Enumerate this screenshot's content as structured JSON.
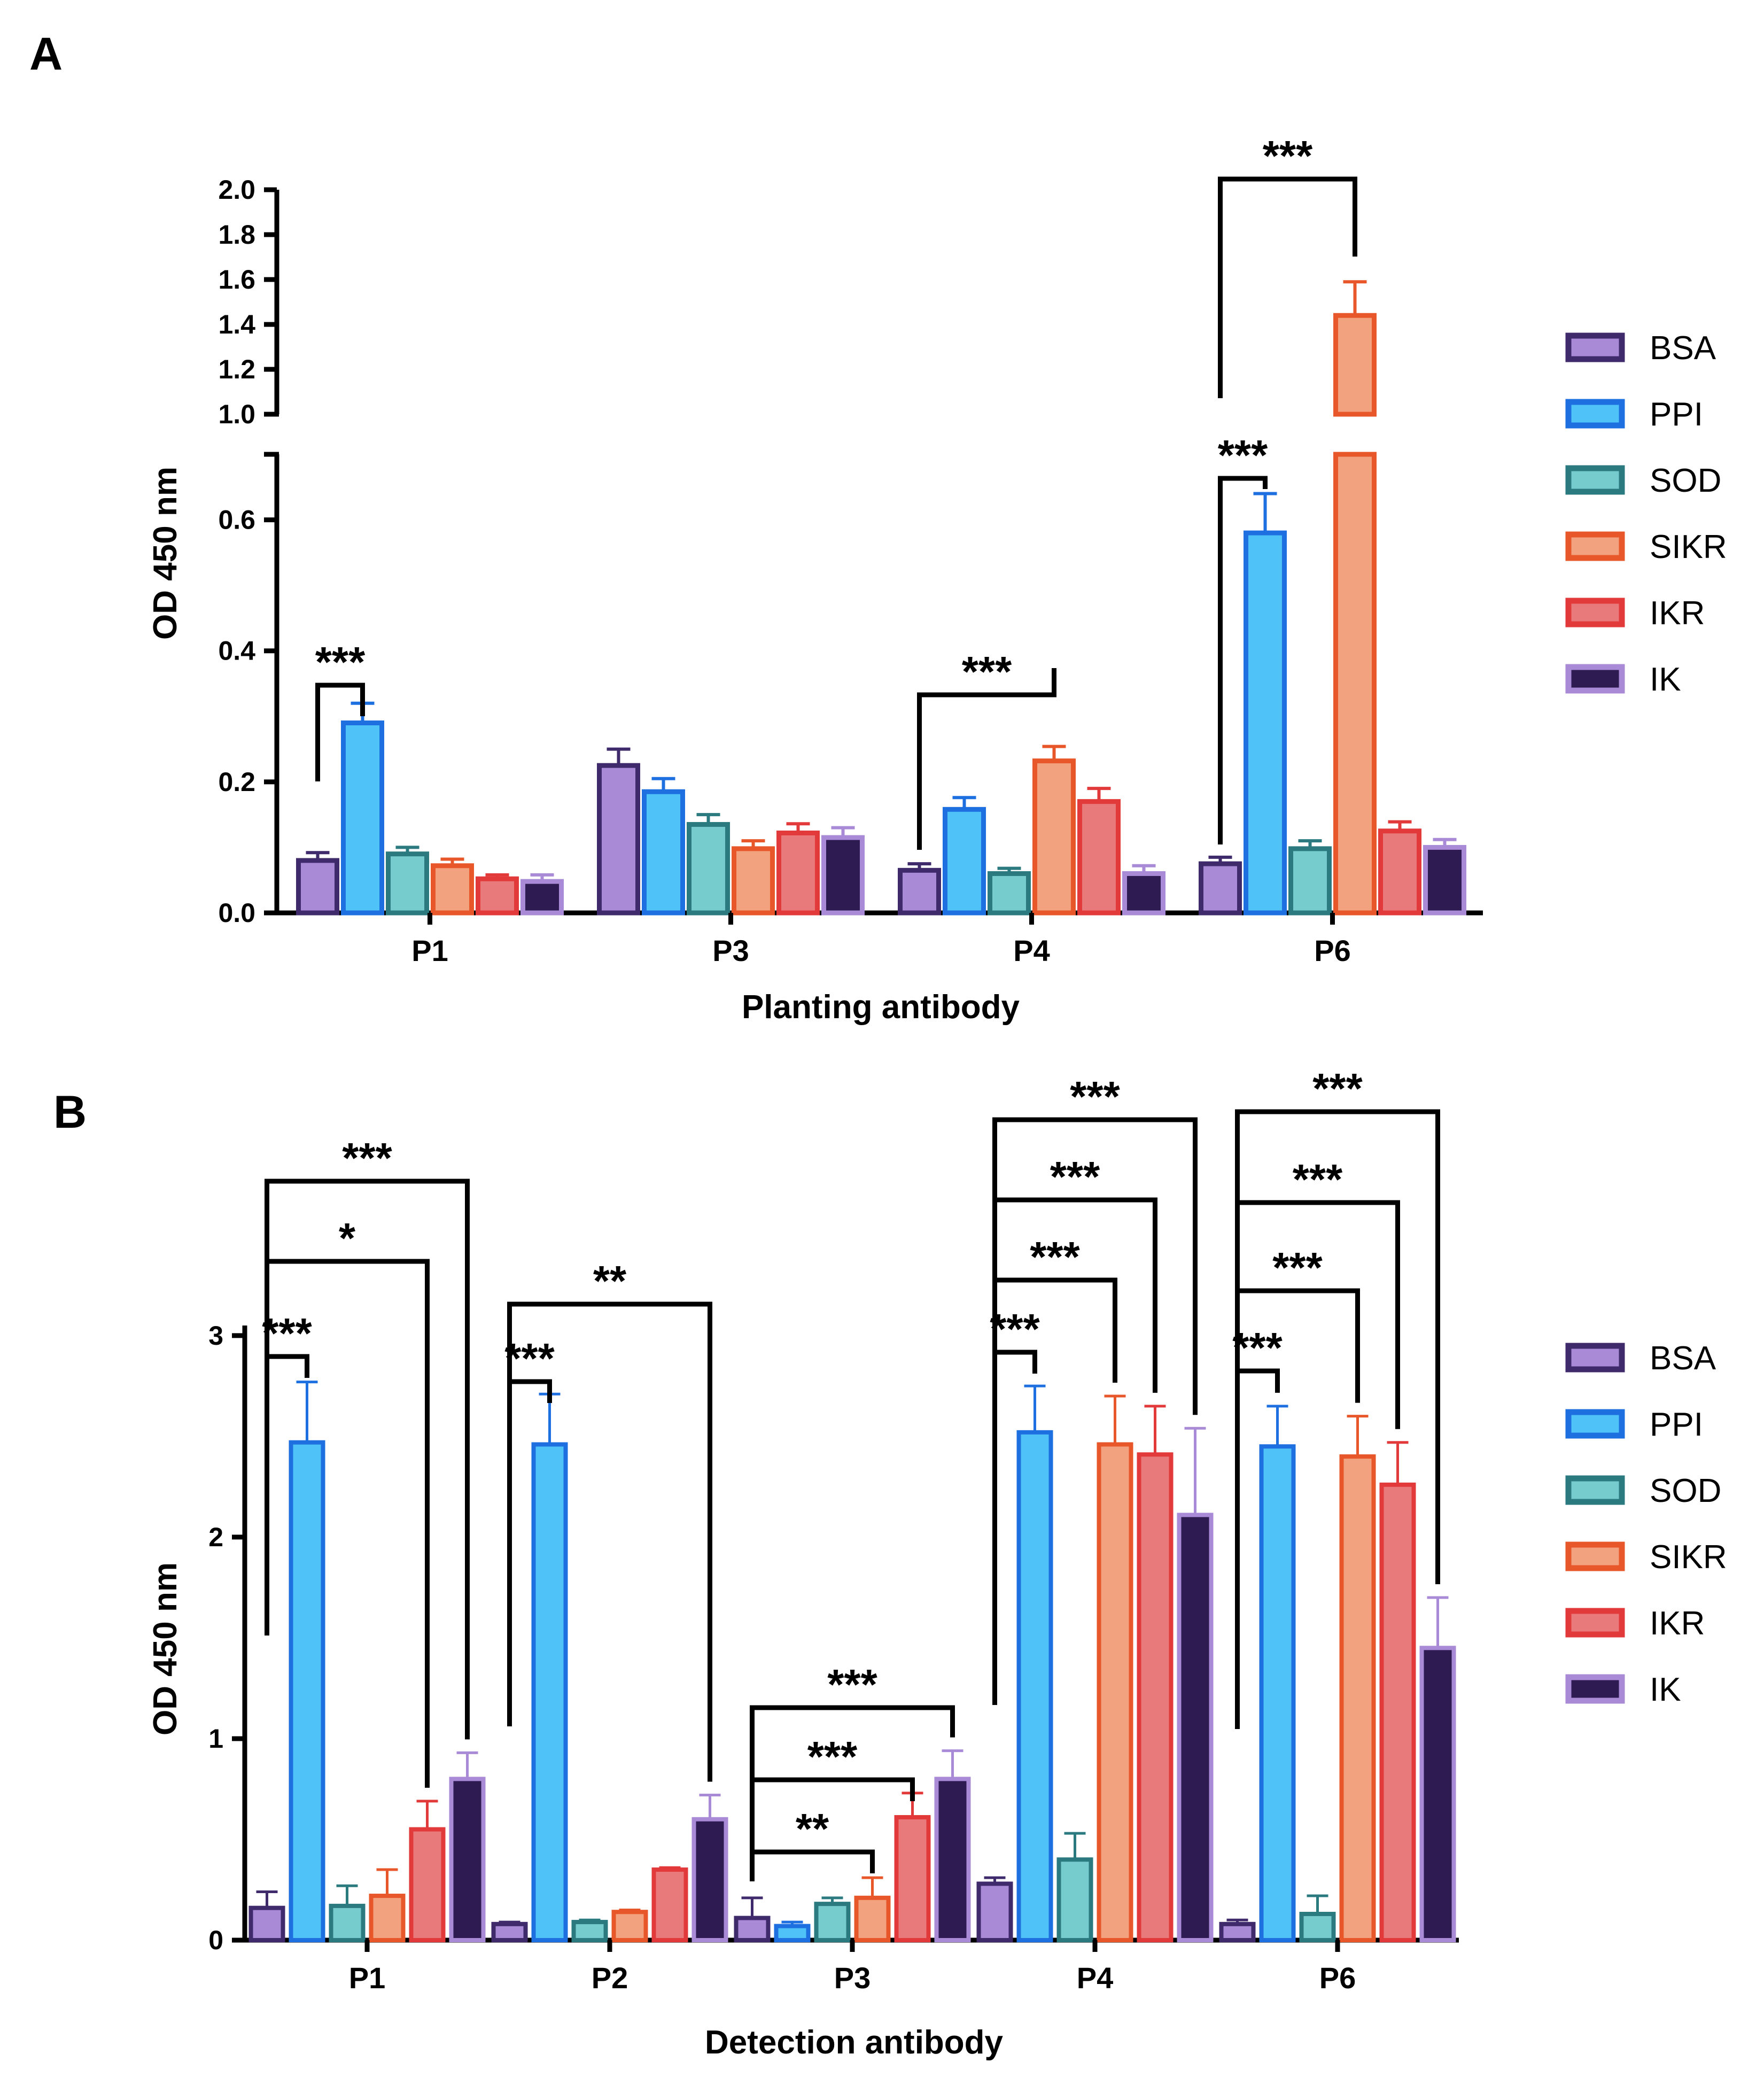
{
  "colors": {
    "BSA": {
      "fill": "#a98ad6",
      "stroke": "#3f2a6b"
    },
    "PPI": {
      "fill": "#4fc3f7",
      "stroke": "#1e6fe0"
    },
    "SOD": {
      "fill": "#76cccc",
      "stroke": "#2b7a80"
    },
    "SIKR": {
      "fill": "#f2a27e",
      "stroke": "#e8572a"
    },
    "IKR": {
      "fill": "#e97a7c",
      "stroke": "#e23a3a"
    },
    "IK": {
      "fill": "#2d1b52",
      "stroke": "#a98ad6"
    }
  },
  "chart_data": [
    {
      "panel": "A",
      "type": "bar",
      "series_names": [
        "BSA",
        "PPI",
        "SOD",
        "SIKR",
        "IKR",
        "IK"
      ],
      "categories": [
        "P1",
        "P3",
        "P4",
        "P6"
      ],
      "series": [
        {
          "name": "BSA",
          "values": [
            0.08,
            0.225,
            0.065,
            0.075
          ],
          "errors": [
            0.012,
            0.025,
            0.01,
            0.01
          ]
        },
        {
          "name": "PPI",
          "values": [
            0.29,
            0.185,
            0.158,
            0.58
          ],
          "errors": [
            0.03,
            0.02,
            0.018,
            0.06
          ]
        },
        {
          "name": "SOD",
          "values": [
            0.09,
            0.135,
            0.06,
            0.098
          ],
          "errors": [
            0.01,
            0.015,
            0.008,
            0.012
          ]
        },
        {
          "name": "SIKR",
          "values": [
            0.072,
            0.098,
            0.232,
            1.44
          ],
          "errors": [
            0.01,
            0.012,
            0.022,
            0.15
          ]
        },
        {
          "name": "IKR",
          "values": [
            0.052,
            0.122,
            0.17,
            0.125
          ],
          "errors": [
            0.006,
            0.014,
            0.02,
            0.014
          ]
        },
        {
          "name": "IK",
          "values": [
            0.048,
            0.115,
            0.06,
            0.1
          ],
          "errors": [
            0.01,
            0.015,
            0.012,
            0.012
          ]
        }
      ],
      "xlabel": "Planting antibody",
      "ylabel": "OD 450 nm",
      "y_segments": [
        {
          "range": [
            0,
            0.7
          ],
          "ticks": [
            0.0,
            0.2,
            0.4,
            0.6
          ]
        },
        {
          "range": [
            1.0,
            2.0
          ],
          "ticks": [
            1.0,
            1.2,
            1.4,
            1.6,
            1.8,
            2.0
          ]
        }
      ],
      "tick_labels_lower": [
        "0.0",
        "0.2",
        "0.4",
        "0.6"
      ],
      "tick_labels_upper": [
        "1.0",
        "1.2",
        "1.4",
        "1.6",
        "1.8",
        "2.0"
      ],
      "significance": [
        {
          "category": "P1",
          "from": "BSA",
          "to": "PPI",
          "label": "***"
        },
        {
          "category": "P4",
          "from": "BSA",
          "to": "SIKR",
          "label": "***"
        },
        {
          "category": "P6",
          "from": "BSA",
          "to": "PPI",
          "label": "***"
        },
        {
          "category": "P6",
          "from": "BSA",
          "to": "SIKR",
          "label": "***"
        }
      ]
    },
    {
      "panel": "B",
      "type": "bar",
      "series_names": [
        "BSA",
        "PPI",
        "SOD",
        "SIKR",
        "IKR",
        "IK"
      ],
      "categories": [
        "P1",
        "P2",
        "P3",
        "P4",
        "P6"
      ],
      "series": [
        {
          "name": "BSA",
          "values": [
            0.16,
            0.08,
            0.11,
            0.28,
            0.08
          ],
          "errors": [
            0.08,
            0.01,
            0.1,
            0.03,
            0.02
          ]
        },
        {
          "name": "PPI",
          "values": [
            2.47,
            2.46,
            0.07,
            2.52,
            2.45
          ],
          "errors": [
            0.3,
            0.25,
            0.02,
            0.23,
            0.2
          ]
        },
        {
          "name": "SOD",
          "values": [
            0.17,
            0.09,
            0.18,
            0.4,
            0.13
          ],
          "errors": [
            0.1,
            0.01,
            0.03,
            0.13,
            0.09
          ]
        },
        {
          "name": "SIKR",
          "values": [
            0.22,
            0.14,
            0.21,
            2.46,
            2.4
          ],
          "errors": [
            0.13,
            0.01,
            0.1,
            0.24,
            0.2
          ]
        },
        {
          "name": "IKR",
          "values": [
            0.55,
            0.35,
            0.61,
            2.41,
            2.26
          ],
          "errors": [
            0.14,
            0.01,
            0.12,
            0.24,
            0.21
          ]
        },
        {
          "name": "IK",
          "values": [
            0.8,
            0.6,
            0.8,
            2.11,
            1.45
          ],
          "errors": [
            0.13,
            0.12,
            0.14,
            0.43,
            0.25
          ]
        }
      ],
      "xlabel": "Detection antibody",
      "ylabel": "OD 450 nm",
      "ylim": [
        0,
        3.05
      ],
      "yticks": [
        0,
        1,
        2,
        3
      ],
      "tick_labels": [
        "0",
        "1",
        "2",
        "3"
      ],
      "significance": [
        {
          "category": "P1",
          "from": "BSA",
          "to": "PPI",
          "label": "***",
          "level": 0
        },
        {
          "category": "P1",
          "from": "BSA",
          "to": "IKR",
          "label": "*",
          "level": 1
        },
        {
          "category": "P1",
          "from": "BSA",
          "to": "IK",
          "label": "***",
          "level": 2
        },
        {
          "category": "P2",
          "from": "BSA",
          "to": "PPI",
          "label": "***",
          "level": 0
        },
        {
          "category": "P2",
          "from": "BSA",
          "to": "IK",
          "label": "**",
          "level": 1
        },
        {
          "category": "P3",
          "from": "BSA",
          "to": "SIKR",
          "label": "**",
          "level": 0
        },
        {
          "category": "P3",
          "from": "BSA",
          "to": "IKR",
          "label": "***",
          "level": 1
        },
        {
          "category": "P3",
          "from": "BSA",
          "to": "IK",
          "label": "***",
          "level": 2
        },
        {
          "category": "P4",
          "from": "BSA",
          "to": "PPI",
          "label": "***",
          "level": 0
        },
        {
          "category": "P4",
          "from": "BSA",
          "to": "SIKR",
          "label": "***",
          "level": 1
        },
        {
          "category": "P4",
          "from": "BSA",
          "to": "IKR",
          "label": "***",
          "level": 2
        },
        {
          "category": "P4",
          "from": "BSA",
          "to": "IK",
          "label": "***",
          "level": 3
        },
        {
          "category": "P6",
          "from": "BSA",
          "to": "PPI",
          "label": "***",
          "level": 0
        },
        {
          "category": "P6",
          "from": "BSA",
          "to": "SIKR",
          "label": "***",
          "level": 1
        },
        {
          "category": "P6",
          "from": "BSA",
          "to": "IKR",
          "label": "***",
          "level": 2
        },
        {
          "category": "P6",
          "from": "BSA",
          "to": "IK",
          "label": "***",
          "level": 3
        }
      ]
    }
  ]
}
